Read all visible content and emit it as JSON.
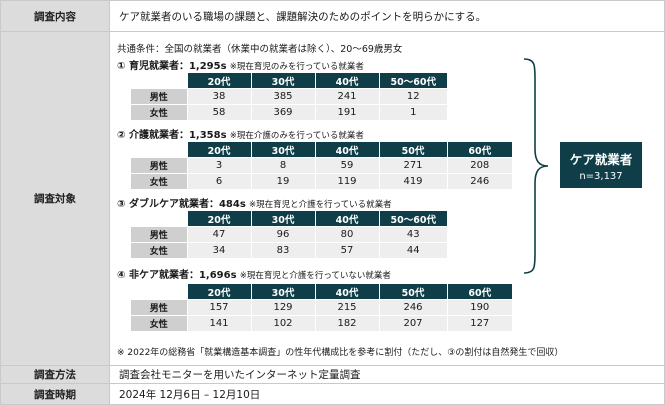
{
  "rows": {
    "content": {
      "label": "調査内容",
      "value": "ケア就業者のいる職場の課題と、課題解決のためのポイントを明らかにする。"
    },
    "target": {
      "label": "調査対象"
    },
    "method": {
      "label": "調査方法",
      "value": "調査会社モニターを用いたインターネット定量調査"
    },
    "period": {
      "label": "調査時期",
      "value": "2024年 12月6日 – 12月10日"
    }
  },
  "common": "共通条件：全国の就業者（休業中の就業者は除く）、20～69歳男女",
  "sections": [
    {
      "head": "① 育児就業者：1,295s",
      "note": "※現在育児のみを行っている就業者",
      "cols": [
        "20代",
        "30代",
        "40代",
        "50～60代"
      ],
      "rows": [
        {
          "label": "男性",
          "values": [
            "38",
            "385",
            "241",
            "12"
          ]
        },
        {
          "label": "女性",
          "values": [
            "58",
            "369",
            "191",
            "1"
          ]
        }
      ]
    },
    {
      "head": "② 介護就業者：1,358s",
      "note": "※現在介護のみを行っている就業者",
      "cols": [
        "20代",
        "30代",
        "40代",
        "50代",
        "60代"
      ],
      "rows": [
        {
          "label": "男性",
          "values": [
            "3",
            "8",
            "59",
            "271",
            "208"
          ]
        },
        {
          "label": "女性",
          "values": [
            "6",
            "19",
            "119",
            "419",
            "246"
          ]
        }
      ]
    },
    {
      "head": "③ ダブルケア就業者：484s",
      "note": "※現在育児と介護を行っている就業者",
      "cols": [
        "20代",
        "30代",
        "40代",
        "50～60代"
      ],
      "rows": [
        {
          "label": "男性",
          "values": [
            "47",
            "96",
            "80",
            "43"
          ]
        },
        {
          "label": "女性",
          "values": [
            "34",
            "83",
            "57",
            "44"
          ]
        }
      ]
    },
    {
      "head": "④ 非ケア就業者：1,696s",
      "note": "※現在育児と介護を行っていない就業者",
      "cols": [
        "20代",
        "30代",
        "40代",
        "50代",
        "60代"
      ],
      "rows": [
        {
          "label": "男性",
          "values": [
            "157",
            "129",
            "215",
            "246",
            "190"
          ]
        },
        {
          "label": "女性",
          "values": [
            "141",
            "102",
            "182",
            "207",
            "127"
          ]
        }
      ]
    }
  ],
  "care_box": {
    "title": "ケア就業者",
    "total": "n=3,137"
  },
  "footnote": "※ 2022年の総務省「就業構造基本調査」の性年代構成比を参考に割付（ただし、③の割付は自然発生で回収）"
}
